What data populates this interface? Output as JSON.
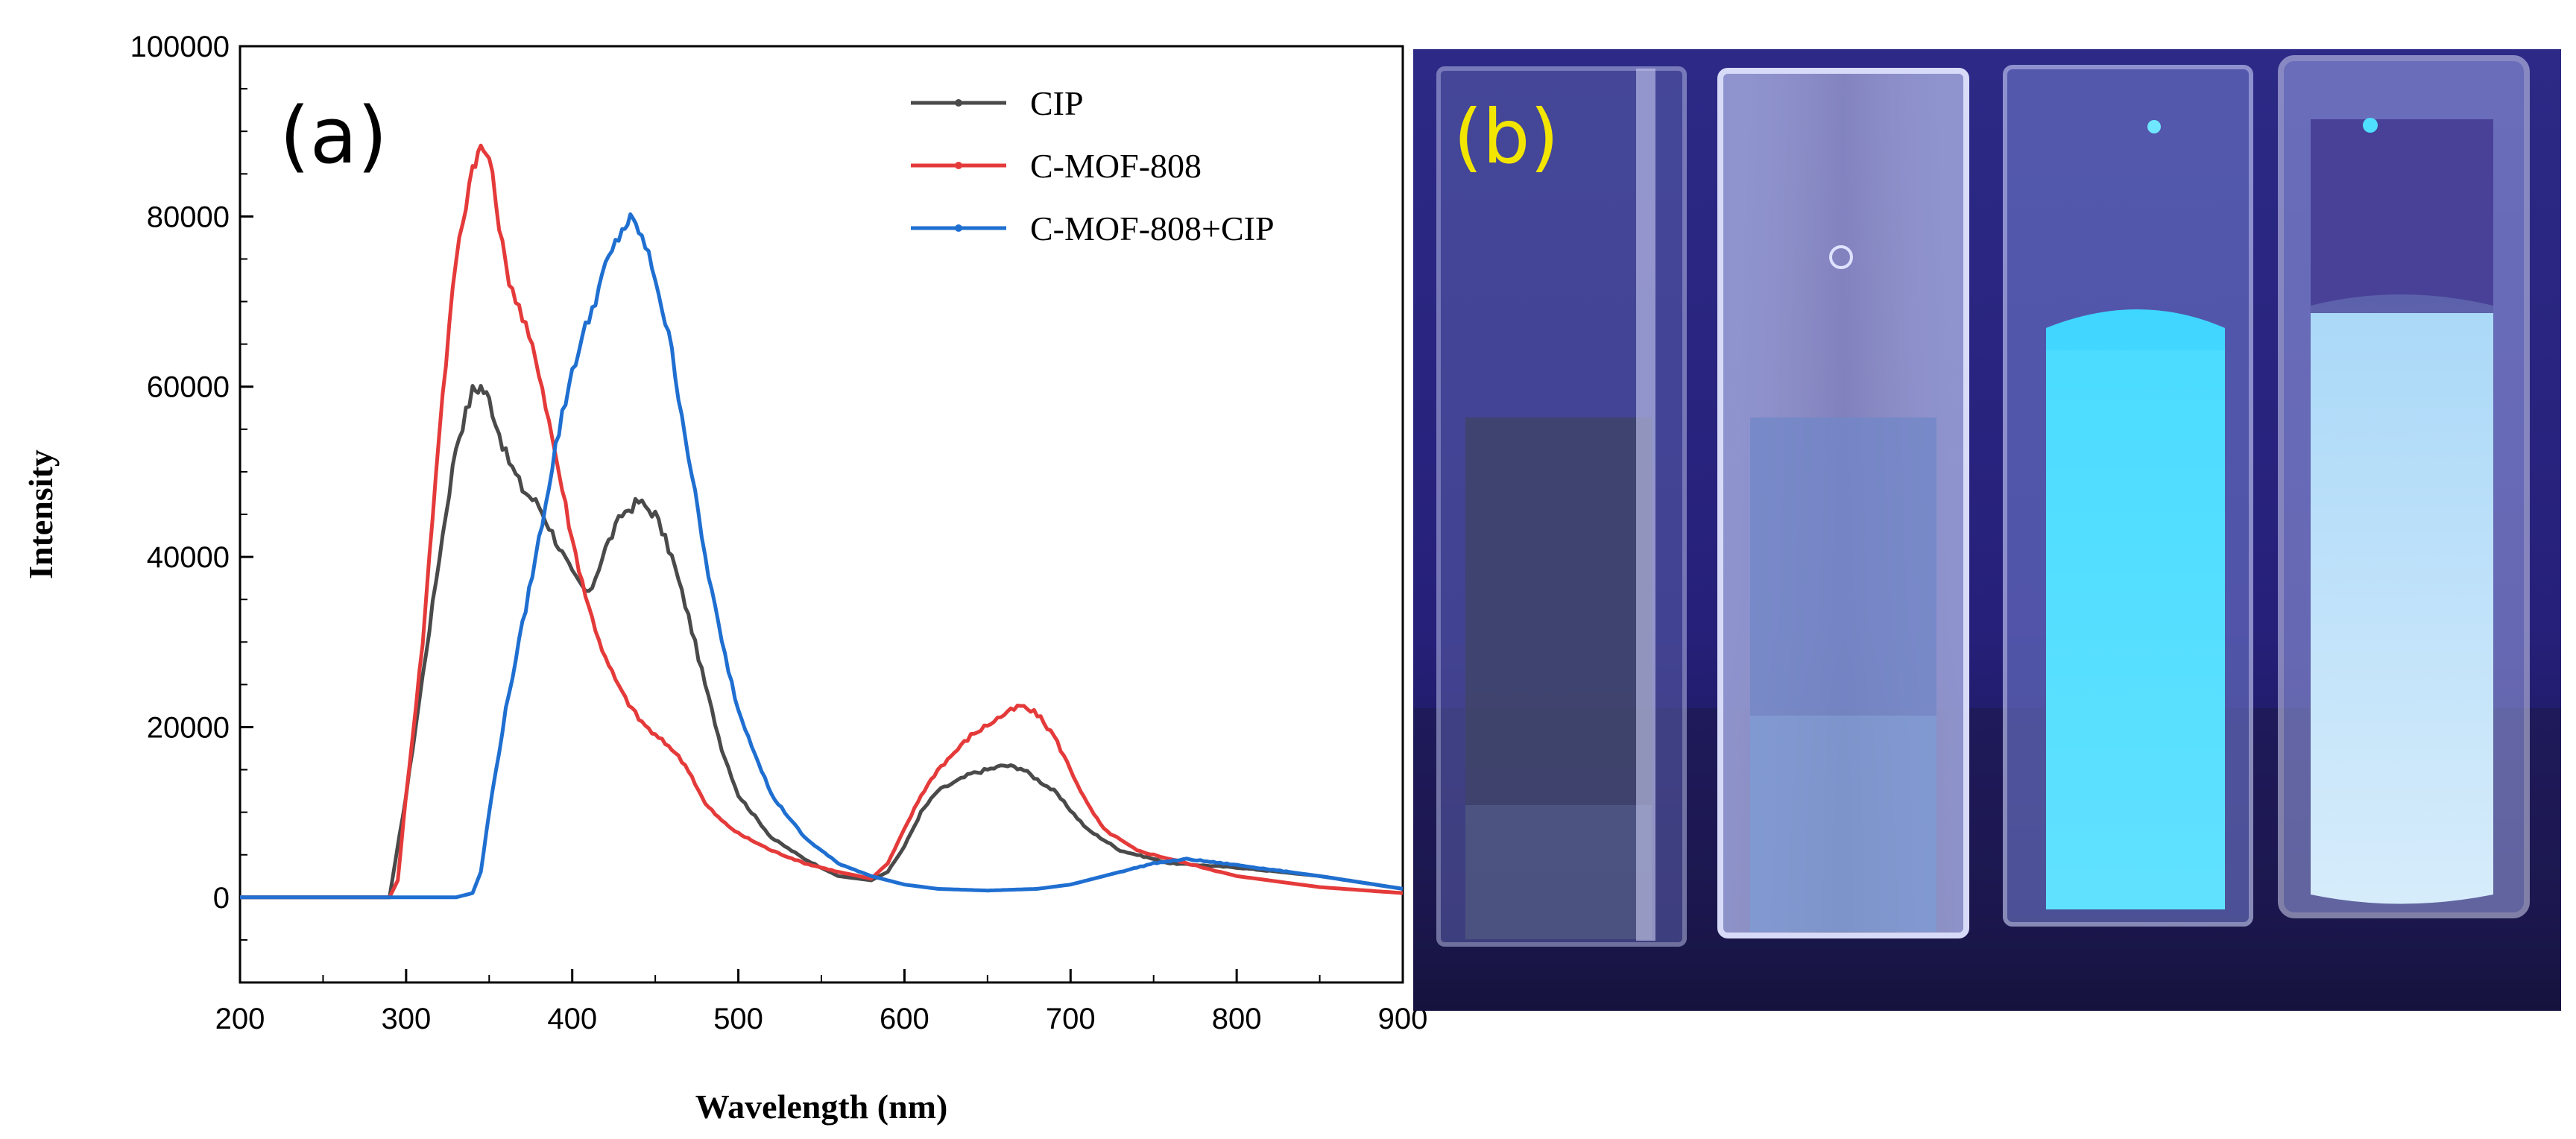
{
  "chart_data": {
    "type": "line",
    "panel_label": "(a)",
    "xlabel": "Wavelength (nm)",
    "ylabel": "Intensity",
    "xlim": [
      200,
      900
    ],
    "ylim": [
      -10000,
      100000
    ],
    "x_ticks": [
      200,
      300,
      400,
      500,
      600,
      700,
      800,
      900
    ],
    "y_ticks": [
      0,
      20000,
      40000,
      60000,
      80000,
      100000
    ],
    "legend_position": "top-right",
    "series": [
      {
        "name": "CIP",
        "color": "#4a4a4a",
        "points": [
          [
            200,
            0
          ],
          [
            290,
            0
          ],
          [
            300,
            12000
          ],
          [
            310,
            26000
          ],
          [
            320,
            40000
          ],
          [
            330,
            53000
          ],
          [
            340,
            59500
          ],
          [
            345,
            60000
          ],
          [
            350,
            58500
          ],
          [
            360,
            52000
          ],
          [
            370,
            48000
          ],
          [
            380,
            46000
          ],
          [
            390,
            42000
          ],
          [
            400,
            38000
          ],
          [
            410,
            35500
          ],
          [
            420,
            41000
          ],
          [
            430,
            45000
          ],
          [
            440,
            46500
          ],
          [
            450,
            45000
          ],
          [
            460,
            40000
          ],
          [
            470,
            33000
          ],
          [
            480,
            25000
          ],
          [
            490,
            17500
          ],
          [
            500,
            12000
          ],
          [
            520,
            7000
          ],
          [
            540,
            4500
          ],
          [
            560,
            2500
          ],
          [
            580,
            2000
          ],
          [
            590,
            3000
          ],
          [
            600,
            6000
          ],
          [
            610,
            10000
          ],
          [
            620,
            12500
          ],
          [
            640,
            14500
          ],
          [
            660,
            15500
          ],
          [
            670,
            15200
          ],
          [
            690,
            12500
          ],
          [
            710,
            8000
          ],
          [
            730,
            5500
          ],
          [
            760,
            4000
          ],
          [
            800,
            3500
          ],
          [
            850,
            2500
          ],
          [
            900,
            1000
          ]
        ]
      },
      {
        "name": "C-MOF-808",
        "color": "#e53a3a",
        "points": [
          [
            200,
            0
          ],
          [
            290,
            0
          ],
          [
            295,
            2000
          ],
          [
            300,
            12000
          ],
          [
            310,
            30000
          ],
          [
            320,
            55000
          ],
          [
            330,
            75000
          ],
          [
            340,
            86000
          ],
          [
            345,
            88000
          ],
          [
            350,
            87000
          ],
          [
            360,
            74000
          ],
          [
            370,
            68000
          ],
          [
            380,
            62000
          ],
          [
            390,
            52000
          ],
          [
            400,
            42000
          ],
          [
            410,
            34000
          ],
          [
            420,
            28000
          ],
          [
            430,
            24000
          ],
          [
            440,
            21000
          ],
          [
            450,
            19000
          ],
          [
            460,
            17500
          ],
          [
            470,
            15000
          ],
          [
            480,
            11000
          ],
          [
            490,
            9000
          ],
          [
            500,
            7500
          ],
          [
            520,
            5500
          ],
          [
            540,
            4000
          ],
          [
            560,
            3000
          ],
          [
            580,
            2200
          ],
          [
            590,
            4000
          ],
          [
            600,
            8000
          ],
          [
            610,
            12000
          ],
          [
            620,
            15000
          ],
          [
            640,
            19000
          ],
          [
            660,
            21500
          ],
          [
            670,
            22500
          ],
          [
            680,
            21500
          ],
          [
            690,
            19000
          ],
          [
            700,
            15000
          ],
          [
            710,
            11000
          ],
          [
            720,
            8000
          ],
          [
            740,
            5500
          ],
          [
            760,
            4500
          ],
          [
            780,
            3500
          ],
          [
            800,
            2500
          ],
          [
            850,
            1200
          ],
          [
            900,
            500
          ]
        ]
      },
      {
        "name": "C-MOF-808+CIP",
        "color": "#1f6fd1",
        "points": [
          [
            200,
            0
          ],
          [
            330,
            0
          ],
          [
            340,
            500
          ],
          [
            345,
            3000
          ],
          [
            350,
            10000
          ],
          [
            360,
            22000
          ],
          [
            370,
            32000
          ],
          [
            380,
            42000
          ],
          [
            390,
            53000
          ],
          [
            400,
            62000
          ],
          [
            410,
            68000
          ],
          [
            420,
            74000
          ],
          [
            430,
            78500
          ],
          [
            435,
            79500
          ],
          [
            440,
            78500
          ],
          [
            450,
            73000
          ],
          [
            460,
            64000
          ],
          [
            470,
            52000
          ],
          [
            480,
            40000
          ],
          [
            490,
            30000
          ],
          [
            500,
            22000
          ],
          [
            520,
            12000
          ],
          [
            540,
            7000
          ],
          [
            560,
            4000
          ],
          [
            580,
            2500
          ],
          [
            600,
            1500
          ],
          [
            620,
            1000
          ],
          [
            650,
            800
          ],
          [
            680,
            1000
          ],
          [
            700,
            1500
          ],
          [
            720,
            2500
          ],
          [
            750,
            4000
          ],
          [
            770,
            4500
          ],
          [
            800,
            3800
          ],
          [
            850,
            2500
          ],
          [
            900,
            1000
          ]
        ]
      }
    ]
  },
  "photo": {
    "panel_label": "(b)",
    "label_color": "#f2e600",
    "background_color": "#2a2478",
    "cuvette_count": 4
  }
}
